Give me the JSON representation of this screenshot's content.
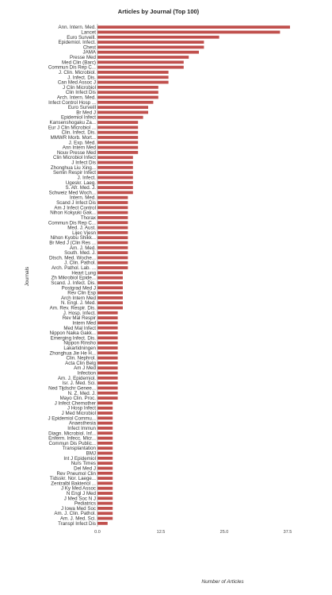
{
  "chart_data": {
    "type": "bar",
    "orientation": "horizontal",
    "title": "Articles by Journal (Top 100)",
    "xlabel": "Number of Articles",
    "ylabel": "Journals",
    "xlim": [
      0,
      37.5
    ],
    "xticks": [
      "0.0",
      "12.5",
      "25.0",
      "37.5"
    ],
    "grid": false,
    "bar_color": "#c0504d",
    "categories": [
      "Ann. Intern. Med.",
      "Lancet",
      "Euro Surveill.",
      "Epidemiol. Infect.",
      "Chest",
      "JAMA",
      "Presse Med",
      "Med Clin (Barc)",
      "Commun Dis Rep C...",
      "J. Clin. Microbiol.",
      "J. Infect. Dis.",
      "Can Med Assoc J",
      "J Clin Microbiol",
      "Clin Infect Dis",
      "Arch. Intern. Med.",
      "Infect Control Hosp ...",
      "Euro Surveill",
      "Br Med J",
      "Epidemiol Infect",
      "Kansenshogaku Za...",
      "Eur J Clin Microbiol ...",
      "Clin. Infect. Dis.",
      "MMWR Morb. Mort...",
      "J. Exp. Med.",
      "Ann Intern Med",
      "Nouv Presse Med",
      "Clin Microbiol Infect",
      "J Infect Dis",
      "Zhonghua Liu Xing...",
      "Semin Respir Infect",
      "J. Infect.",
      "Ugeskr. Laeg.",
      "S. Afr. Med. J.",
      "Schweiz Med Woch...",
      "Intern. Med.",
      "Scand J Infect Dis",
      "Am J Infect Control",
      "Nihon Kokyuki Gak...",
      "Thorax",
      "Commun Dis Rep C...",
      "Med. J. Aust.",
      "Lijec Vjesn",
      "Nihon Kyobu Shikk...",
      "Br Med J (Clin Res ...",
      "Am. J. Med.",
      "South. Med. J.",
      "Dtsch. Med. Woche...",
      "J. Clin. Pathol.",
      "Arch. Pathol. Lab. ...",
      "Heart Lung",
      "Zh Mikrobiol Epide...",
      "Scand. J. Infect. Dis.",
      "Postgrad Med J",
      "Rev Clin Esp",
      "Arch Intern Med",
      "N. Engl. J. Med.",
      "Am. Rev. Respir. Dis.",
      "J. Hosp. Infect.",
      "Rev Mal Respir",
      "Intern Med",
      "Med Mal Infect",
      "Nippon Naika Gakk...",
      "Emerging Infect. Dis.",
      "Nippon Rinsho",
      "Lakartidningen",
      "Zhonghua Jie He H...",
      "Clin. Nephrol.",
      "Acta Clin Belg",
      "Am J Med",
      "Infection",
      "Am. J. Epidemiol.",
      "Isr. J. Med. Sci.",
      "Ned Tijdschr Genee...",
      "N. Z. Med. J.",
      "Mayo Clin. Proc.",
      "J Infect Chemother",
      "J Hosp Infect",
      "J Med Microbiol",
      "J Epidemiol Commu...",
      "Anaesthesia",
      "Infect Immun",
      "Diagn. Microbiol. Inf...",
      "Enferm. Infecc. Micr...",
      "Commun Dis Public...",
      "Transplantation",
      "BMJ",
      "Int J Epidemiol",
      "Nurs Times",
      "Del Med J",
      "Rev Pneumol Clin",
      "Tidsskr. Nor. Laege...",
      "Zentralbl Bakteriol ...",
      "J Ky Med Assoc",
      "N Engl J Med",
      "J Med Soc N J",
      "Pediatrics",
      "J Iowa Med Soc",
      "Am. J. Clin. Pathol.",
      "Am. J. Med. Sci.",
      "Transpl Infect Dis"
    ],
    "values": [
      38,
      36,
      24,
      21,
      21,
      20,
      18,
      17,
      17,
      14,
      14,
      14,
      12,
      12,
      12,
      11,
      10,
      10,
      9,
      8,
      8,
      8,
      8,
      8,
      8,
      8,
      7,
      7,
      7,
      7,
      7,
      7,
      7,
      7,
      6,
      6,
      6,
      6,
      6,
      6,
      6,
      6,
      6,
      6,
      6,
      6,
      6,
      6,
      6,
      5,
      5,
      5,
      5,
      5,
      5,
      5,
      5,
      4,
      4,
      4,
      4,
      4,
      4,
      4,
      4,
      4,
      4,
      4,
      4,
      4,
      4,
      4,
      4,
      4,
      4,
      3,
      3,
      3,
      3,
      3,
      3,
      3,
      3,
      3,
      3,
      3,
      3,
      3,
      3,
      3,
      3,
      3,
      3,
      3,
      3,
      3,
      3,
      3,
      3,
      2
    ]
  }
}
